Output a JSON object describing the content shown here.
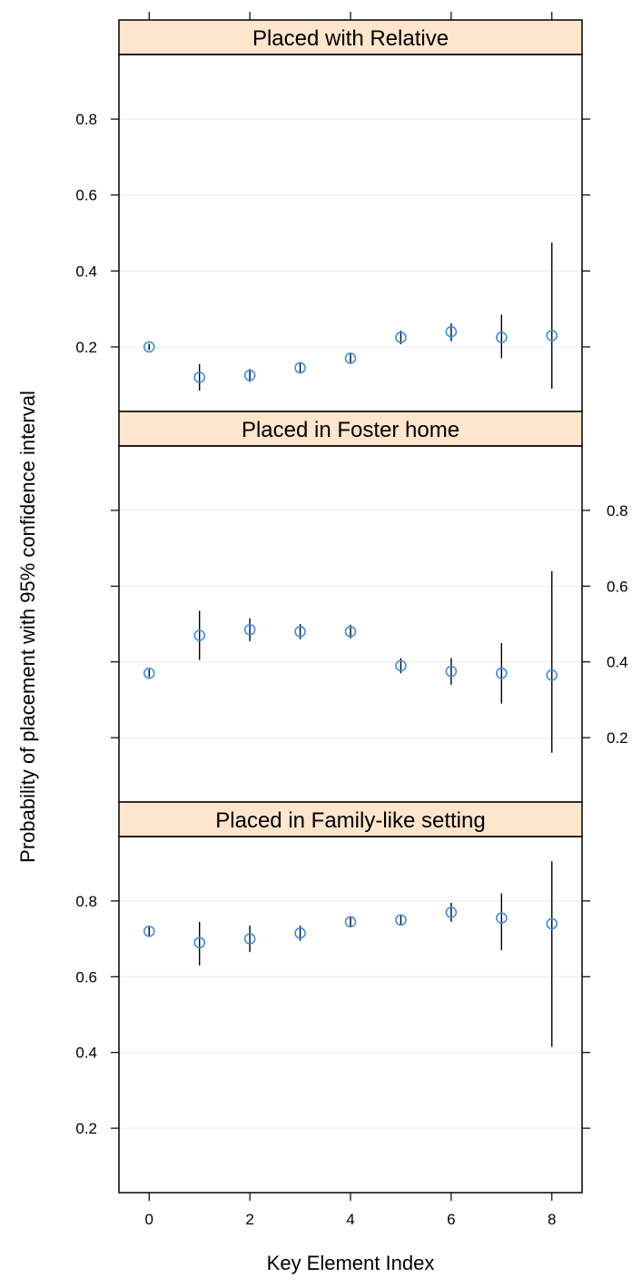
{
  "chart_data": {
    "type": "scatter",
    "xlabel": "Key Element Index",
    "ylabel": "Probability of placement with 95% confidence interval",
    "x_ticks": [
      "0",
      "2",
      "4",
      "6",
      "8"
    ],
    "y_ticks": [
      "0.2",
      "0.4",
      "0.6",
      "0.8"
    ],
    "xlim": [
      -0.6,
      8.6
    ],
    "ylim": [
      0.03,
      0.97
    ],
    "point_color": "#3c8fe6",
    "strip_color": "#ffe5cc",
    "grid": "horizontal light",
    "panels": [
      {
        "title": "Placed with Relative",
        "y_axis_side": "left",
        "x": [
          0,
          1,
          2,
          3,
          4,
          5,
          6,
          7,
          8
        ],
        "y": [
          0.2,
          0.12,
          0.125,
          0.145,
          0.17,
          0.225,
          0.24,
          0.225,
          0.23
        ],
        "lower": [
          0.192,
          0.085,
          0.108,
          0.13,
          0.157,
          0.207,
          0.215,
          0.17,
          0.09
        ],
        "upper": [
          0.208,
          0.155,
          0.142,
          0.16,
          0.183,
          0.243,
          0.262,
          0.285,
          0.475
        ]
      },
      {
        "title": "Placed in Foster home",
        "y_axis_side": "right",
        "x": [
          0,
          1,
          2,
          3,
          4,
          5,
          6,
          7,
          8
        ],
        "y": [
          0.37,
          0.47,
          0.485,
          0.48,
          0.48,
          0.39,
          0.375,
          0.37,
          0.365
        ],
        "lower": [
          0.36,
          0.405,
          0.455,
          0.46,
          0.462,
          0.37,
          0.34,
          0.29,
          0.16
        ],
        "upper": [
          0.38,
          0.535,
          0.515,
          0.5,
          0.498,
          0.41,
          0.41,
          0.45,
          0.64
        ]
      },
      {
        "title": "Placed in Family-like setting",
        "y_axis_side": "left",
        "x": [
          0,
          1,
          2,
          3,
          4,
          5,
          6,
          7,
          8
        ],
        "y": [
          0.72,
          0.69,
          0.7,
          0.715,
          0.745,
          0.75,
          0.77,
          0.755,
          0.74
        ],
        "lower": [
          0.705,
          0.63,
          0.665,
          0.695,
          0.73,
          0.735,
          0.745,
          0.67,
          0.415
        ],
        "upper": [
          0.735,
          0.745,
          0.735,
          0.735,
          0.76,
          0.765,
          0.795,
          0.82,
          0.905
        ]
      }
    ]
  }
}
